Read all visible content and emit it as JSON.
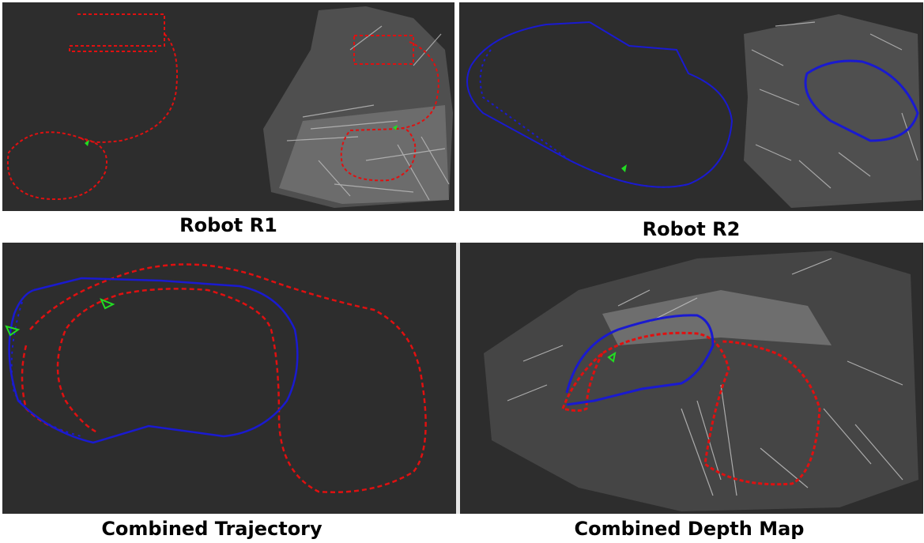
{
  "captions": {
    "r1": "Robot R1",
    "r2": "Robot R2",
    "combined_trajectory": "Combined Trajectory",
    "combined_depth_map": "Combined Depth Map"
  },
  "colors": {
    "background": "#2d2d2d",
    "robot_r1": "#e01010",
    "robot_r2": "#1a1ad0",
    "keyframe": "#22dd22",
    "depth_points": "#cfcfcf"
  }
}
